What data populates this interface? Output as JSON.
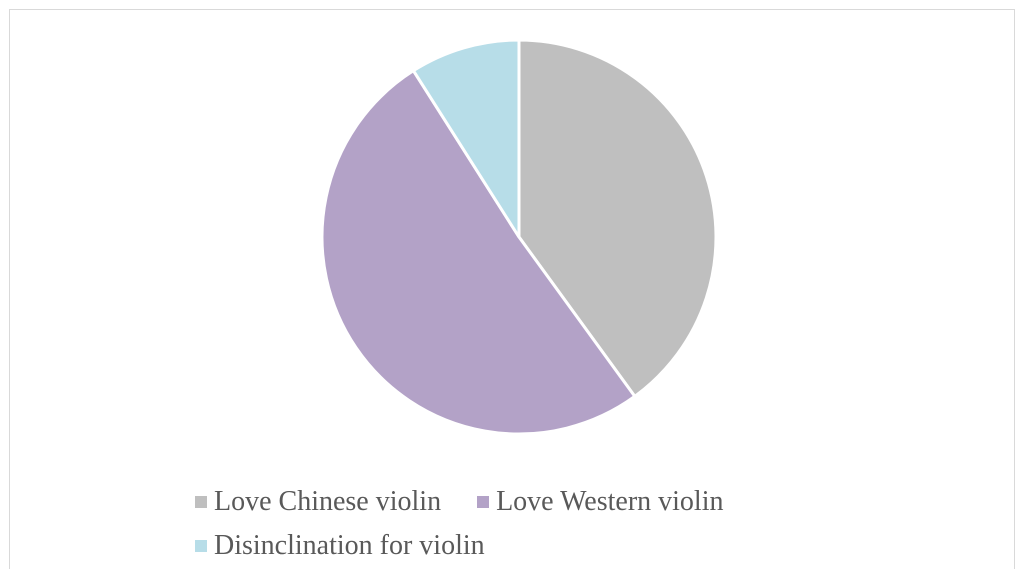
{
  "chart_data": {
    "type": "pie",
    "categories": [
      "Love Chinese violin",
      "Love Western violin",
      "Disinclination for violin"
    ],
    "values": [
      40,
      51,
      9
    ],
    "colors": [
      "#bfbfbf",
      "#b3a2c7",
      "#b7dde8"
    ],
    "start_angle_deg": 0,
    "direction": "clockwise",
    "legend_position": "bottom"
  }
}
